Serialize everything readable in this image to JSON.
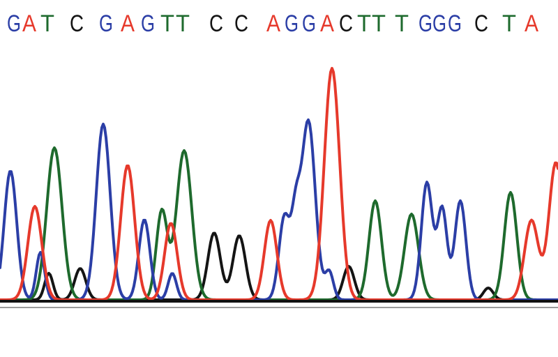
{
  "sequence": {
    "bases": [
      "G",
      "A",
      "T",
      "C",
      "G",
      "A",
      "G",
      "T",
      "T",
      "C",
      "C",
      "A",
      "G",
      "G",
      "A",
      "C",
      "T",
      "T",
      "T",
      "G",
      "G",
      "G",
      "C",
      "T",
      "A"
    ],
    "colors": {
      "G": "#2b3ea6",
      "A": "#e6392b",
      "T": "#1e6a2d",
      "C": "#141414"
    }
  }
}
